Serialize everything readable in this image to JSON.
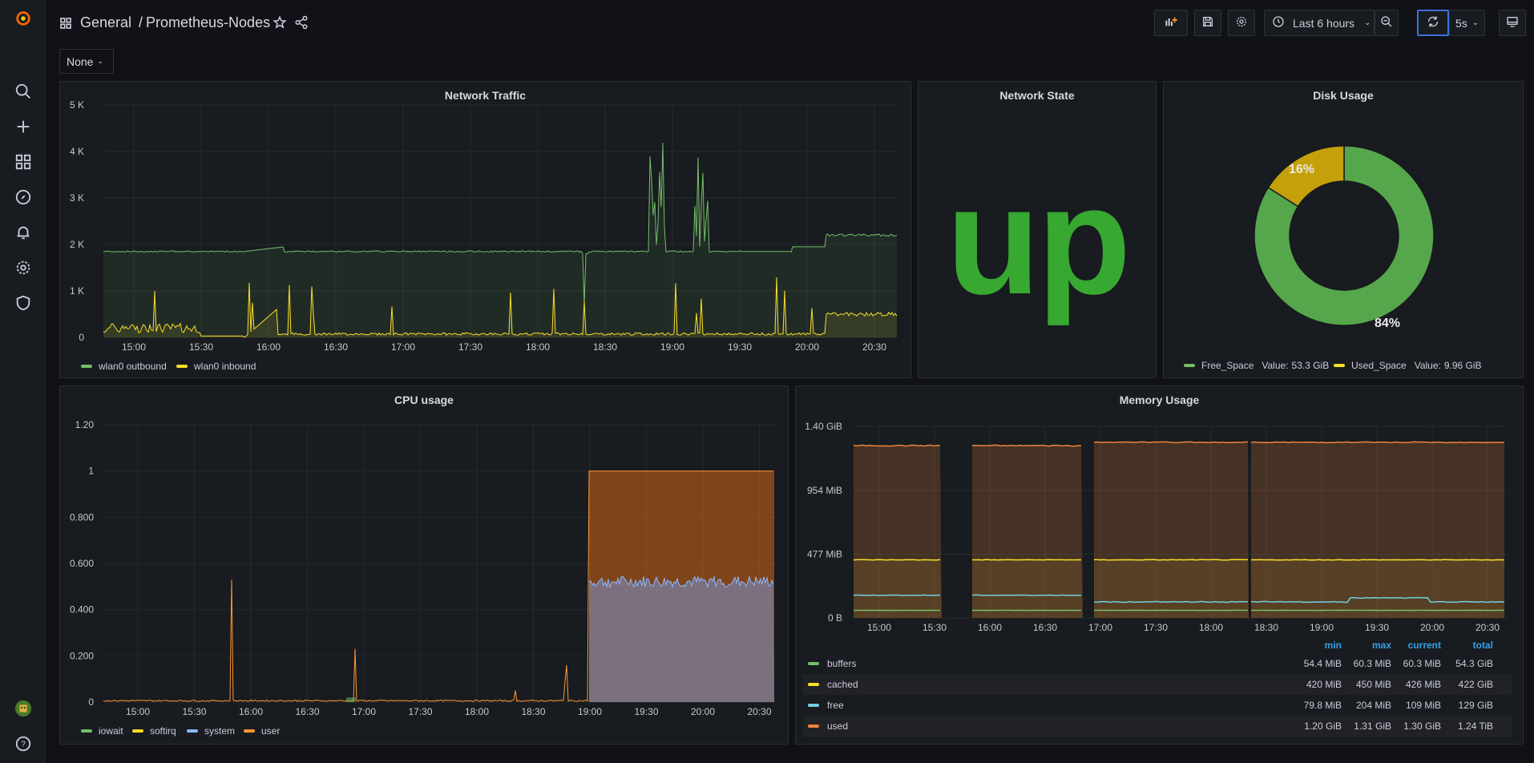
{
  "breadcrumb": {
    "folder": "General",
    "separator": "/",
    "dashboard": "Prometheus-Nodes"
  },
  "toolbar": {
    "time_range": "Last 6 hours",
    "refresh_interval": "5s"
  },
  "variable": {
    "value": "None"
  },
  "time_ticks": [
    "15:00",
    "15:30",
    "16:00",
    "16:30",
    "17:00",
    "17:30",
    "18:00",
    "18:30",
    "19:00",
    "19:30",
    "20:00",
    "20:30"
  ],
  "network_traffic": {
    "title": "Network Traffic",
    "y_ticks": [
      "5 K",
      "4 K",
      "3 K",
      "2 K",
      "1 K",
      "0"
    ],
    "legend": [
      "wlan0 outbound",
      "wlan0 inbound"
    ],
    "colors": {
      "outbound": "#73bf69",
      "inbound": "#fade2a"
    }
  },
  "network_state": {
    "title": "Network State",
    "value": "up",
    "color": "#37a830"
  },
  "disk_usage": {
    "title": "Disk Usage",
    "slices": [
      {
        "name": "Free_Space",
        "value_text": "53.3 GiB",
        "percent": 84,
        "color": "#56a64b"
      },
      {
        "name": "Used_Space",
        "value_text": "9.96 GiB",
        "percent": 16,
        "color": "#c4a00a"
      }
    ],
    "labels": [
      "16%",
      "84%"
    ],
    "legend": [
      {
        "name": "Free_Space",
        "value_label": "Value:",
        "value": "53.3 GiB"
      },
      {
        "name": "Used_Space",
        "value_label": "Value:",
        "value": "9.96 GiB"
      }
    ]
  },
  "cpu_usage": {
    "title": "CPU usage",
    "y_ticks": [
      "1.20",
      "1",
      "0.800",
      "0.600",
      "0.400",
      "0.200",
      "0"
    ],
    "legend": [
      {
        "name": "iowait",
        "color": "#73bf69"
      },
      {
        "name": "softirq",
        "color": "#fade2a"
      },
      {
        "name": "system",
        "color": "#8ab8ff"
      },
      {
        "name": "user",
        "color": "#ff9830"
      }
    ]
  },
  "memory_usage": {
    "title": "Memory Usage",
    "y_ticks": [
      "1.40 GiB",
      "954 MiB",
      "477 MiB",
      "0 B"
    ],
    "columns": [
      "min",
      "max",
      "current",
      "total"
    ],
    "rows": [
      {
        "name": "buffers",
        "color": "#73bf69",
        "min": "54.4 MiB",
        "max": "60.3 MiB",
        "current": "60.3 MiB",
        "total": "54.3 GiB"
      },
      {
        "name": "cached",
        "color": "#fade2a",
        "min": "420 MiB",
        "max": "450 MiB",
        "current": "426 MiB",
        "total": "422 GiB"
      },
      {
        "name": "free",
        "color": "#6ed0e0",
        "min": "79.8 MiB",
        "max": "204 MiB",
        "current": "109 MiB",
        "total": "129 GiB"
      },
      {
        "name": "used",
        "color": "#ef843c",
        "min": "1.20 GiB",
        "max": "1.31 GiB",
        "current": "1.30 GiB",
        "total": "1.24 TiB"
      }
    ]
  }
}
